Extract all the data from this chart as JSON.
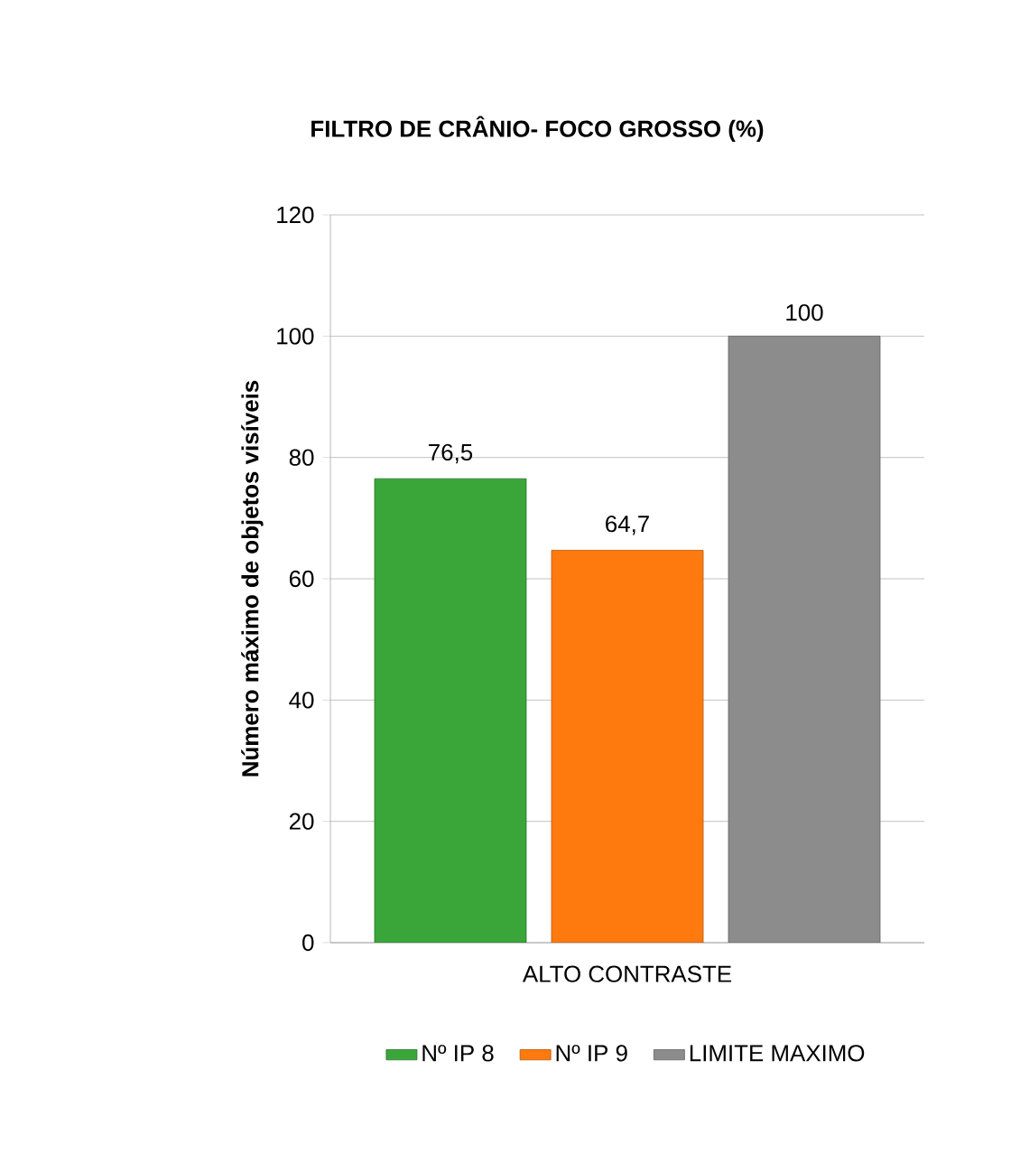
{
  "chart_data": {
    "type": "bar",
    "title": "FILTRO DE CRÂNIO- FOCO GROSSO (%)",
    "ylabel": "Número máximo de objetos visíveis",
    "categories": [
      "ALTO CONTRASTE"
    ],
    "series": [
      {
        "name": "Nº IP 8",
        "color": "#3aa63a",
        "values": [
          76.5
        ],
        "value_labels": [
          "76,5"
        ]
      },
      {
        "name": "Nº IP 9",
        "color": "#ff7a0e",
        "values": [
          64.7
        ],
        "value_labels": [
          "64,7"
        ]
      },
      {
        "name": "LIMITE MAXIMO",
        "color": "#8c8c8c",
        "values": [
          100
        ],
        "value_labels": [
          "100"
        ]
      }
    ],
    "ylim": [
      0,
      120
    ],
    "yticks": [
      0,
      20,
      40,
      60,
      80,
      100,
      120
    ],
    "grid": "y",
    "legend": "bottom"
  }
}
